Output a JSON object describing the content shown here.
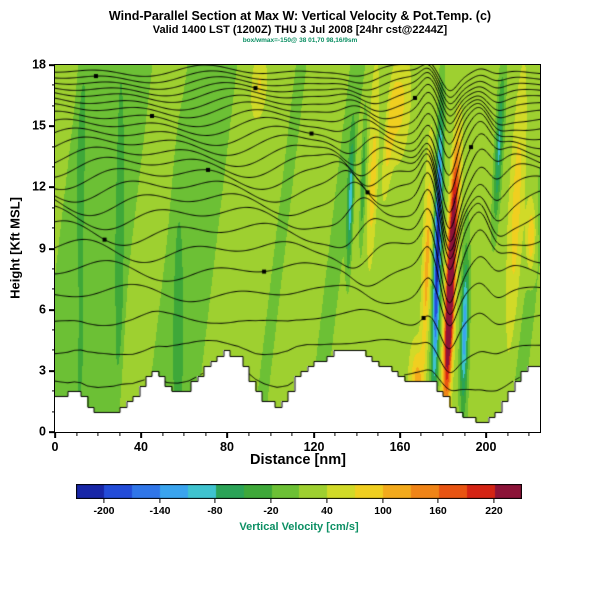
{
  "chart_data": {
    "type": "heatmap",
    "title": "Wind-Parallel Section at Max W: Vertical Velocity & Pot.Temp. (c)",
    "subtitle": "Valid 1400 LST (1200Z) THU 3 Jul 2008 [24hr cst@2244Z]",
    "info_line": "box/wmax=-150@ 38 01,70 98,16/9sm",
    "xlabel": "Distance [nm]",
    "ylabel": "Height [Kft MSL]",
    "xlim": [
      0,
      225
    ],
    "ylim": [
      0,
      18
    ],
    "xticks": [
      0,
      40,
      80,
      120,
      160,
      200
    ],
    "xtick_minor_step": 10,
    "yticks": [
      0,
      3,
      6,
      9,
      12,
      15,
      18
    ],
    "ytick_minor_step": 1,
    "grid": false,
    "colorbar": {
      "label": "Vertical Velocity [cm/s]",
      "ticks": [
        -200,
        -140,
        -80,
        -20,
        40,
        100,
        160,
        220
      ],
      "range": [
        -230,
        250
      ],
      "band_width": 30,
      "stops": [
        [
          -230,
          "#141487"
        ],
        [
          -195,
          "#1f3ed2"
        ],
        [
          -160,
          "#2f6fe8"
        ],
        [
          -125,
          "#3aa4ee"
        ],
        [
          -95,
          "#3fc3cf"
        ],
        [
          -70,
          "#2aa45e"
        ],
        [
          -45,
          "#2f9f3b"
        ],
        [
          -15,
          "#5cbb37"
        ],
        [
          15,
          "#8ccc33"
        ],
        [
          45,
          "#c3da2b"
        ],
        [
          75,
          "#eedc22"
        ],
        [
          105,
          "#f4b61e"
        ],
        [
          140,
          "#f28c18"
        ],
        [
          175,
          "#e85412"
        ],
        [
          205,
          "#d42414"
        ],
        [
          235,
          "#8c1338"
        ]
      ]
    },
    "field": {
      "base": 14,
      "amp1": 24,
      "scale1": 7,
      "amp2": 14,
      "scale2": 18,
      "tilt": 1.1,
      "features": [
        {
          "label": "strong-downdraft",
          "x": 177.5,
          "z": 9,
          "sx": 1.6,
          "sz": 6.5,
          "amp": -240,
          "tilt": 0.25
        },
        {
          "label": "strong-updraft",
          "x": 183,
          "z": 6,
          "sx": 2.0,
          "sz": 4.5,
          "amp": 300,
          "tilt": 0.35
        },
        {
          "label": "updraft-upper",
          "x": 185.5,
          "z": 11.5,
          "sx": 2.2,
          "sz": 3.5,
          "amp": 150,
          "tilt": 0.5
        },
        {
          "label": "downdraft-lee",
          "x": 190,
          "z": 5,
          "sx": 1.7,
          "sz": 3.8,
          "amp": -150,
          "tilt": 0.2
        },
        {
          "label": "midlevel-downdraft",
          "x": 137,
          "z": 11,
          "sx": 1.4,
          "sz": 3.5,
          "amp": -115,
          "tilt": 0.3
        },
        {
          "label": "midlevel-downdraft-2",
          "x": 143,
          "z": 12.5,
          "sx": 1.2,
          "sz": 3.0,
          "amp": -85,
          "tilt": 0.35
        },
        {
          "label": "midlevel-updraft",
          "x": 147.5,
          "z": 12,
          "sx": 2.0,
          "sz": 4.0,
          "amp": 70,
          "tilt": 0.4
        },
        {
          "label": "upper-updraft",
          "x": 160,
          "z": 16,
          "sx": 4.0,
          "sz": 2.5,
          "amp": 55,
          "tilt": 0.6
        },
        {
          "label": "low-updraft",
          "x": 168,
          "z": 2.5,
          "sx": 3.0,
          "sz": 1.6,
          "amp": 85,
          "tilt": 0
        },
        {
          "label": "pre-jump-updraft",
          "x": 172.5,
          "z": 8,
          "sx": 1.8,
          "sz": 5.0,
          "amp": 85,
          "tilt": 0.3
        },
        {
          "label": "right-downdraft",
          "x": 206,
          "z": 14,
          "sx": 1.6,
          "sz": 3.5,
          "amp": -105,
          "tilt": 0.45
        },
        {
          "label": "right-updraft",
          "x": 214,
          "z": 11,
          "sx": 2.5,
          "sz": 5.0,
          "amp": 55,
          "tilt": 0.4
        },
        {
          "label": "right-updraft-2",
          "x": 221,
          "z": 9.5,
          "sx": 2.0,
          "sz": 1.6,
          "amp": 90,
          "tilt": 0.2
        },
        {
          "label": "upper-streak",
          "x": 155,
          "z": 14.5,
          "sx": 2.2,
          "sz": 3.0,
          "amp": 60,
          "tilt": 0.8
        },
        {
          "label": "green-column-1",
          "x": 30,
          "z": 8,
          "sx": 2.2,
          "sz": 8.0,
          "amp": -45,
          "tilt": 0.1
        },
        {
          "label": "green-column-2",
          "x": 57,
          "z": 6,
          "sx": 2.5,
          "sz": 6.0,
          "amp": -40,
          "tilt": 0.1
        },
        {
          "label": "green-column-3",
          "x": 12,
          "z": 10,
          "sx": 2.0,
          "sz": 7.0,
          "amp": -40,
          "tilt": 0.1
        },
        {
          "label": "top-streak",
          "x": 95,
          "z": 17,
          "sx": 3.0,
          "sz": 1.5,
          "amp": 45,
          "tilt": 0.5
        }
      ]
    },
    "contours": {
      "overlay": "potential-temperature-isolines",
      "levels": [
        2.6,
        4.1,
        5.5,
        6.8,
        7.9,
        8.9,
        9.8,
        10.6,
        11.3,
        11.95,
        12.55,
        13.1,
        13.6,
        14.1,
        14.55,
        15.0,
        15.4,
        15.8,
        16.15,
        16.5,
        16.8,
        17.1,
        17.4,
        17.7
      ]
    },
    "terrain_profile": [
      [
        0,
        1.7
      ],
      [
        6,
        1.8
      ],
      [
        9,
        2.1
      ],
      [
        12,
        2.0
      ],
      [
        15,
        1.4
      ],
      [
        20,
        1.0
      ],
      [
        27,
        1.0
      ],
      [
        31,
        1.3
      ],
      [
        36,
        1.5
      ],
      [
        41,
        2.3
      ],
      [
        45,
        3.0
      ],
      [
        48,
        2.9
      ],
      [
        52,
        2.2
      ],
      [
        57,
        2.0
      ],
      [
        62,
        2.1
      ],
      [
        66,
        2.6
      ],
      [
        71,
        3.3
      ],
      [
        75,
        3.8
      ],
      [
        80,
        3.9
      ],
      [
        85,
        3.8
      ],
      [
        89,
        3.1
      ],
      [
        93,
        2.1
      ],
      [
        97,
        1.6
      ],
      [
        103,
        1.3
      ],
      [
        108,
        1.7
      ],
      [
        112,
        2.7
      ],
      [
        117,
        3.3
      ],
      [
        123,
        3.5
      ],
      [
        128,
        3.9
      ],
      [
        134,
        4.05
      ],
      [
        141,
        4.0
      ],
      [
        146,
        3.6
      ],
      [
        151,
        3.4
      ],
      [
        157,
        3.0
      ],
      [
        161,
        2.6
      ],
      [
        167,
        2.6
      ],
      [
        171,
        2.4
      ],
      [
        175,
        2.5
      ],
      [
        178,
        2.0
      ],
      [
        182,
        1.6
      ],
      [
        186,
        1.2
      ],
      [
        190,
        0.85
      ],
      [
        195,
        0.55
      ],
      [
        200,
        0.6
      ],
      [
        205,
        1.0
      ],
      [
        209,
        1.6
      ],
      [
        213,
        2.3
      ],
      [
        217,
        2.9
      ],
      [
        221,
        3.2
      ],
      [
        225,
        3.35
      ]
    ]
  }
}
